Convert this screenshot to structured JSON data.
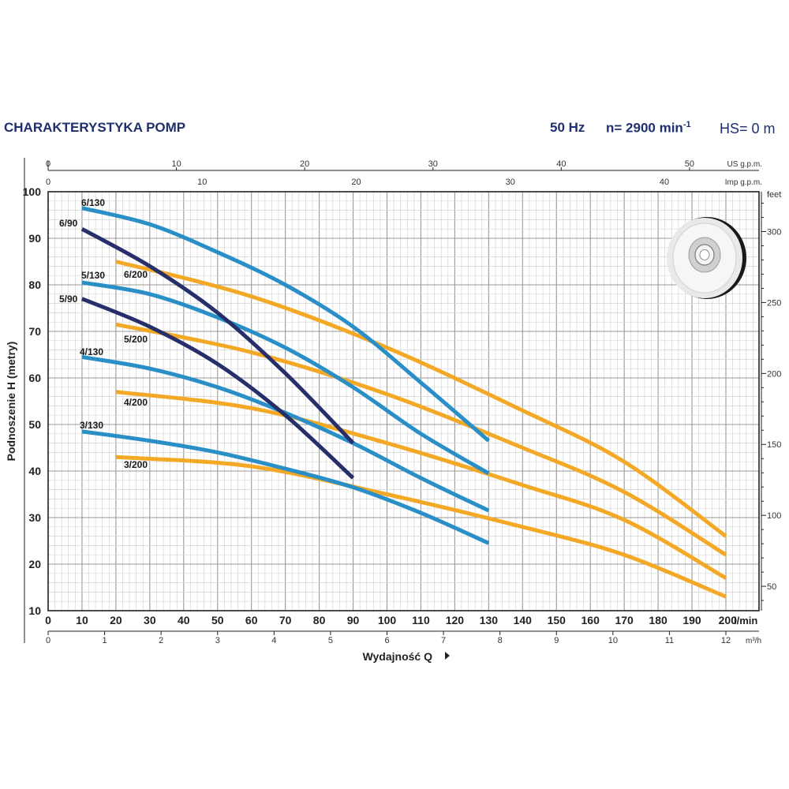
{
  "header": {
    "title": "CHARAKTERYSTYKA POMP",
    "frequency": "50 Hz",
    "speed_label": "n= 2900 min",
    "speed_unit_sup": "-1",
    "hs": "HS= 0 m"
  },
  "colors": {
    "blue_series": "#2a8fc7",
    "navy_series": "#272f6b",
    "orange_series": "#f3a826",
    "grid_major": "#9a9a9a",
    "grid_minor": "#d4d4d4",
    "title_color": "#1f2f6e"
  },
  "chart_data": {
    "type": "line",
    "ylabel": "Podnoszenie H (metry)",
    "xlabel": "Wydajność Q",
    "xlim": [
      0,
      200
    ],
    "ylim": [
      10,
      100
    ],
    "x_unit_primary": "l/min",
    "x_unit_m3h": "m³/h",
    "y_unit_feet": "feet",
    "top_axis_us_label": "US g.p.m.",
    "top_axis_imp_label": "Imp g.p.m.",
    "x_ticks": [
      0,
      10,
      20,
      30,
      40,
      50,
      60,
      70,
      80,
      90,
      100,
      110,
      120,
      130,
      140,
      150,
      160,
      170,
      180,
      190,
      200
    ],
    "x_ticks_m3h": [
      0,
      1,
      2,
      3,
      4,
      5,
      6,
      7,
      8,
      9,
      10,
      11,
      12
    ],
    "y_ticks": [
      10,
      20,
      30,
      40,
      50,
      60,
      70,
      80,
      90,
      100
    ],
    "feet_ticks": [
      50,
      100,
      150,
      200,
      250,
      300
    ],
    "us_gpm_ticks": [
      0,
      10,
      20,
      30,
      40,
      50
    ],
    "imp_gpm_ticks": [
      0,
      10,
      20,
      30,
      40
    ],
    "grid": true,
    "series": [
      {
        "name": "6/130",
        "color": "blue",
        "x": [
          10,
          30,
          50,
          70,
          90,
          110,
          130
        ],
        "y": [
          96.5,
          93,
          87,
          80,
          71,
          59,
          46.5
        ]
      },
      {
        "name": "5/130",
        "color": "blue",
        "x": [
          10,
          30,
          50,
          70,
          90,
          110,
          130
        ],
        "y": [
          80.5,
          78,
          73,
          66.5,
          58,
          48,
          39.5
        ]
      },
      {
        "name": "4/130",
        "color": "blue",
        "x": [
          10,
          30,
          50,
          70,
          90,
          110,
          130
        ],
        "y": [
          64.5,
          62,
          58,
          52.5,
          46,
          38.5,
          31.5
        ]
      },
      {
        "name": "3/130",
        "color": "blue",
        "x": [
          10,
          30,
          50,
          70,
          90,
          110,
          130
        ],
        "y": [
          48.5,
          46.5,
          44,
          40.5,
          36.5,
          31,
          24.5
        ]
      },
      {
        "name": "6/90",
        "color": "navy",
        "x": [
          10,
          30,
          50,
          70,
          90
        ],
        "y": [
          92,
          84,
          74,
          61,
          46
        ]
      },
      {
        "name": "5/90",
        "color": "navy",
        "x": [
          10,
          30,
          50,
          70,
          90
        ],
        "y": [
          77,
          71,
          63,
          52,
          38.5
        ]
      },
      {
        "name": "6/200",
        "color": "orange",
        "x": [
          20,
          60,
          100,
          140,
          170,
          200
        ],
        "y": [
          85,
          77.5,
          66.5,
          53,
          42,
          26
        ]
      },
      {
        "name": "5/200",
        "color": "orange",
        "x": [
          20,
          60,
          100,
          140,
          170,
          200
        ],
        "y": [
          71.5,
          65.5,
          56.5,
          45,
          35.5,
          22
        ]
      },
      {
        "name": "4/200",
        "color": "orange",
        "x": [
          20,
          60,
          100,
          140,
          170,
          200
        ],
        "y": [
          57,
          53.5,
          46,
          37,
          29.5,
          17
        ]
      },
      {
        "name": "3/200",
        "color": "orange",
        "x": [
          20,
          60,
          100,
          140,
          170,
          200
        ],
        "y": [
          43,
          41,
          35,
          28,
          22,
          13
        ]
      }
    ]
  }
}
